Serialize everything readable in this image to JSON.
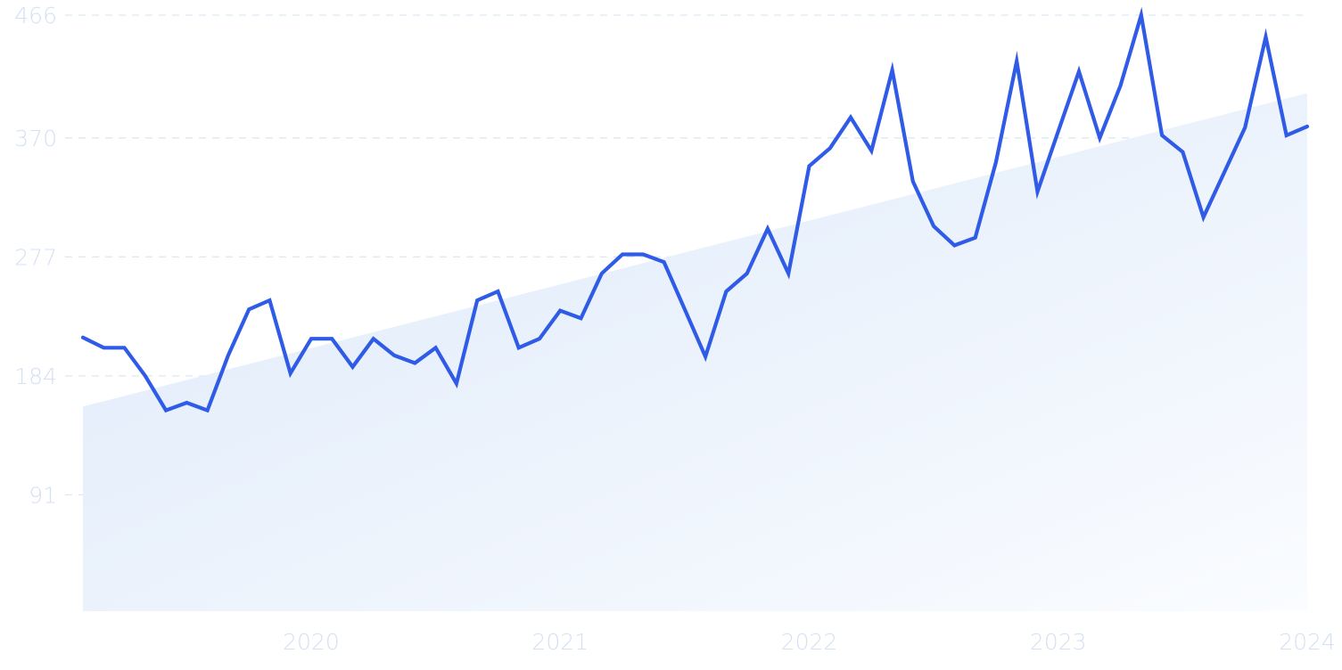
{
  "chart_data": {
    "type": "area",
    "title": "",
    "xlabel": "",
    "ylabel": "",
    "ylim": [
      0,
      466
    ],
    "xlim": [
      "2019-02",
      "2024-01"
    ],
    "grid": "horizontal-dashed",
    "y_ticks": [
      {
        "value": 466,
        "label": "466"
      },
      {
        "value": 370,
        "label": "370"
      },
      {
        "value": 277,
        "label": "277"
      },
      {
        "value": 184,
        "label": "184"
      },
      {
        "value": 91,
        "label": "91"
      }
    ],
    "x_ticks": [
      {
        "value": "2020-01",
        "label": "2020"
      },
      {
        "value": "2021-01",
        "label": "2021"
      },
      {
        "value": "2022-01",
        "label": "2022"
      },
      {
        "value": "2023-01",
        "label": "2023"
      },
      {
        "value": "2024-01",
        "label": "2024"
      }
    ],
    "series": [
      {
        "x": [
          "2019-02",
          "2019-03",
          "2019-04",
          "2019-05",
          "2019-06",
          "2019-07",
          "2019-08",
          "2019-09",
          "2019-10",
          "2019-11",
          "2019-12",
          "2020-01",
          "2020-02",
          "2020-03",
          "2020-04",
          "2020-05",
          "2020-06",
          "2020-07",
          "2020-08",
          "2020-09",
          "2020-10",
          "2020-11",
          "2020-12",
          "2021-01",
          "2021-02",
          "2021-03",
          "2021-04",
          "2021-05",
          "2021-06",
          "2021-07",
          "2021-08",
          "2021-09",
          "2021-10",
          "2021-11",
          "2021-12",
          "2022-01",
          "2022-02",
          "2022-03",
          "2022-04",
          "2022-05",
          "2022-06",
          "2022-07",
          "2022-08",
          "2022-09",
          "2022-10",
          "2022-11",
          "2022-12",
          "2023-01",
          "2023-02",
          "2023-03",
          "2023-04",
          "2023-05",
          "2023-06",
          "2023-07",
          "2023-08",
          "2023-09",
          "2023-10",
          "2023-11",
          "2023-12",
          "2024-01"
        ],
        "values": [
          214,
          206,
          206,
          184,
          157,
          163,
          157,
          200,
          236,
          243,
          186,
          213,
          213,
          191,
          213,
          200,
          194,
          206,
          178,
          243,
          250,
          206,
          213,
          235,
          229,
          264,
          279,
          279,
          273,
          236,
          199,
          250,
          264,
          299,
          264,
          348,
          362,
          386,
          360,
          423,
          336,
          301,
          286,
          292,
          351,
          430,
          328,
          375,
          422,
          370,
          411,
          466,
          372,
          359,
          308,
          343,
          378,
          449,
          372,
          379
        ]
      },
      {
        "type": "trend-area",
        "x": [
          "2019-02",
          "2024-01"
        ],
        "values": [
          160,
          405
        ]
      }
    ],
    "colors": {
      "line": "#2f5be7",
      "area_start": "#dde9f9",
      "area_end": "#fafcff",
      "grid": "#dbe9f3",
      "tick": "#d5e0f3"
    }
  }
}
